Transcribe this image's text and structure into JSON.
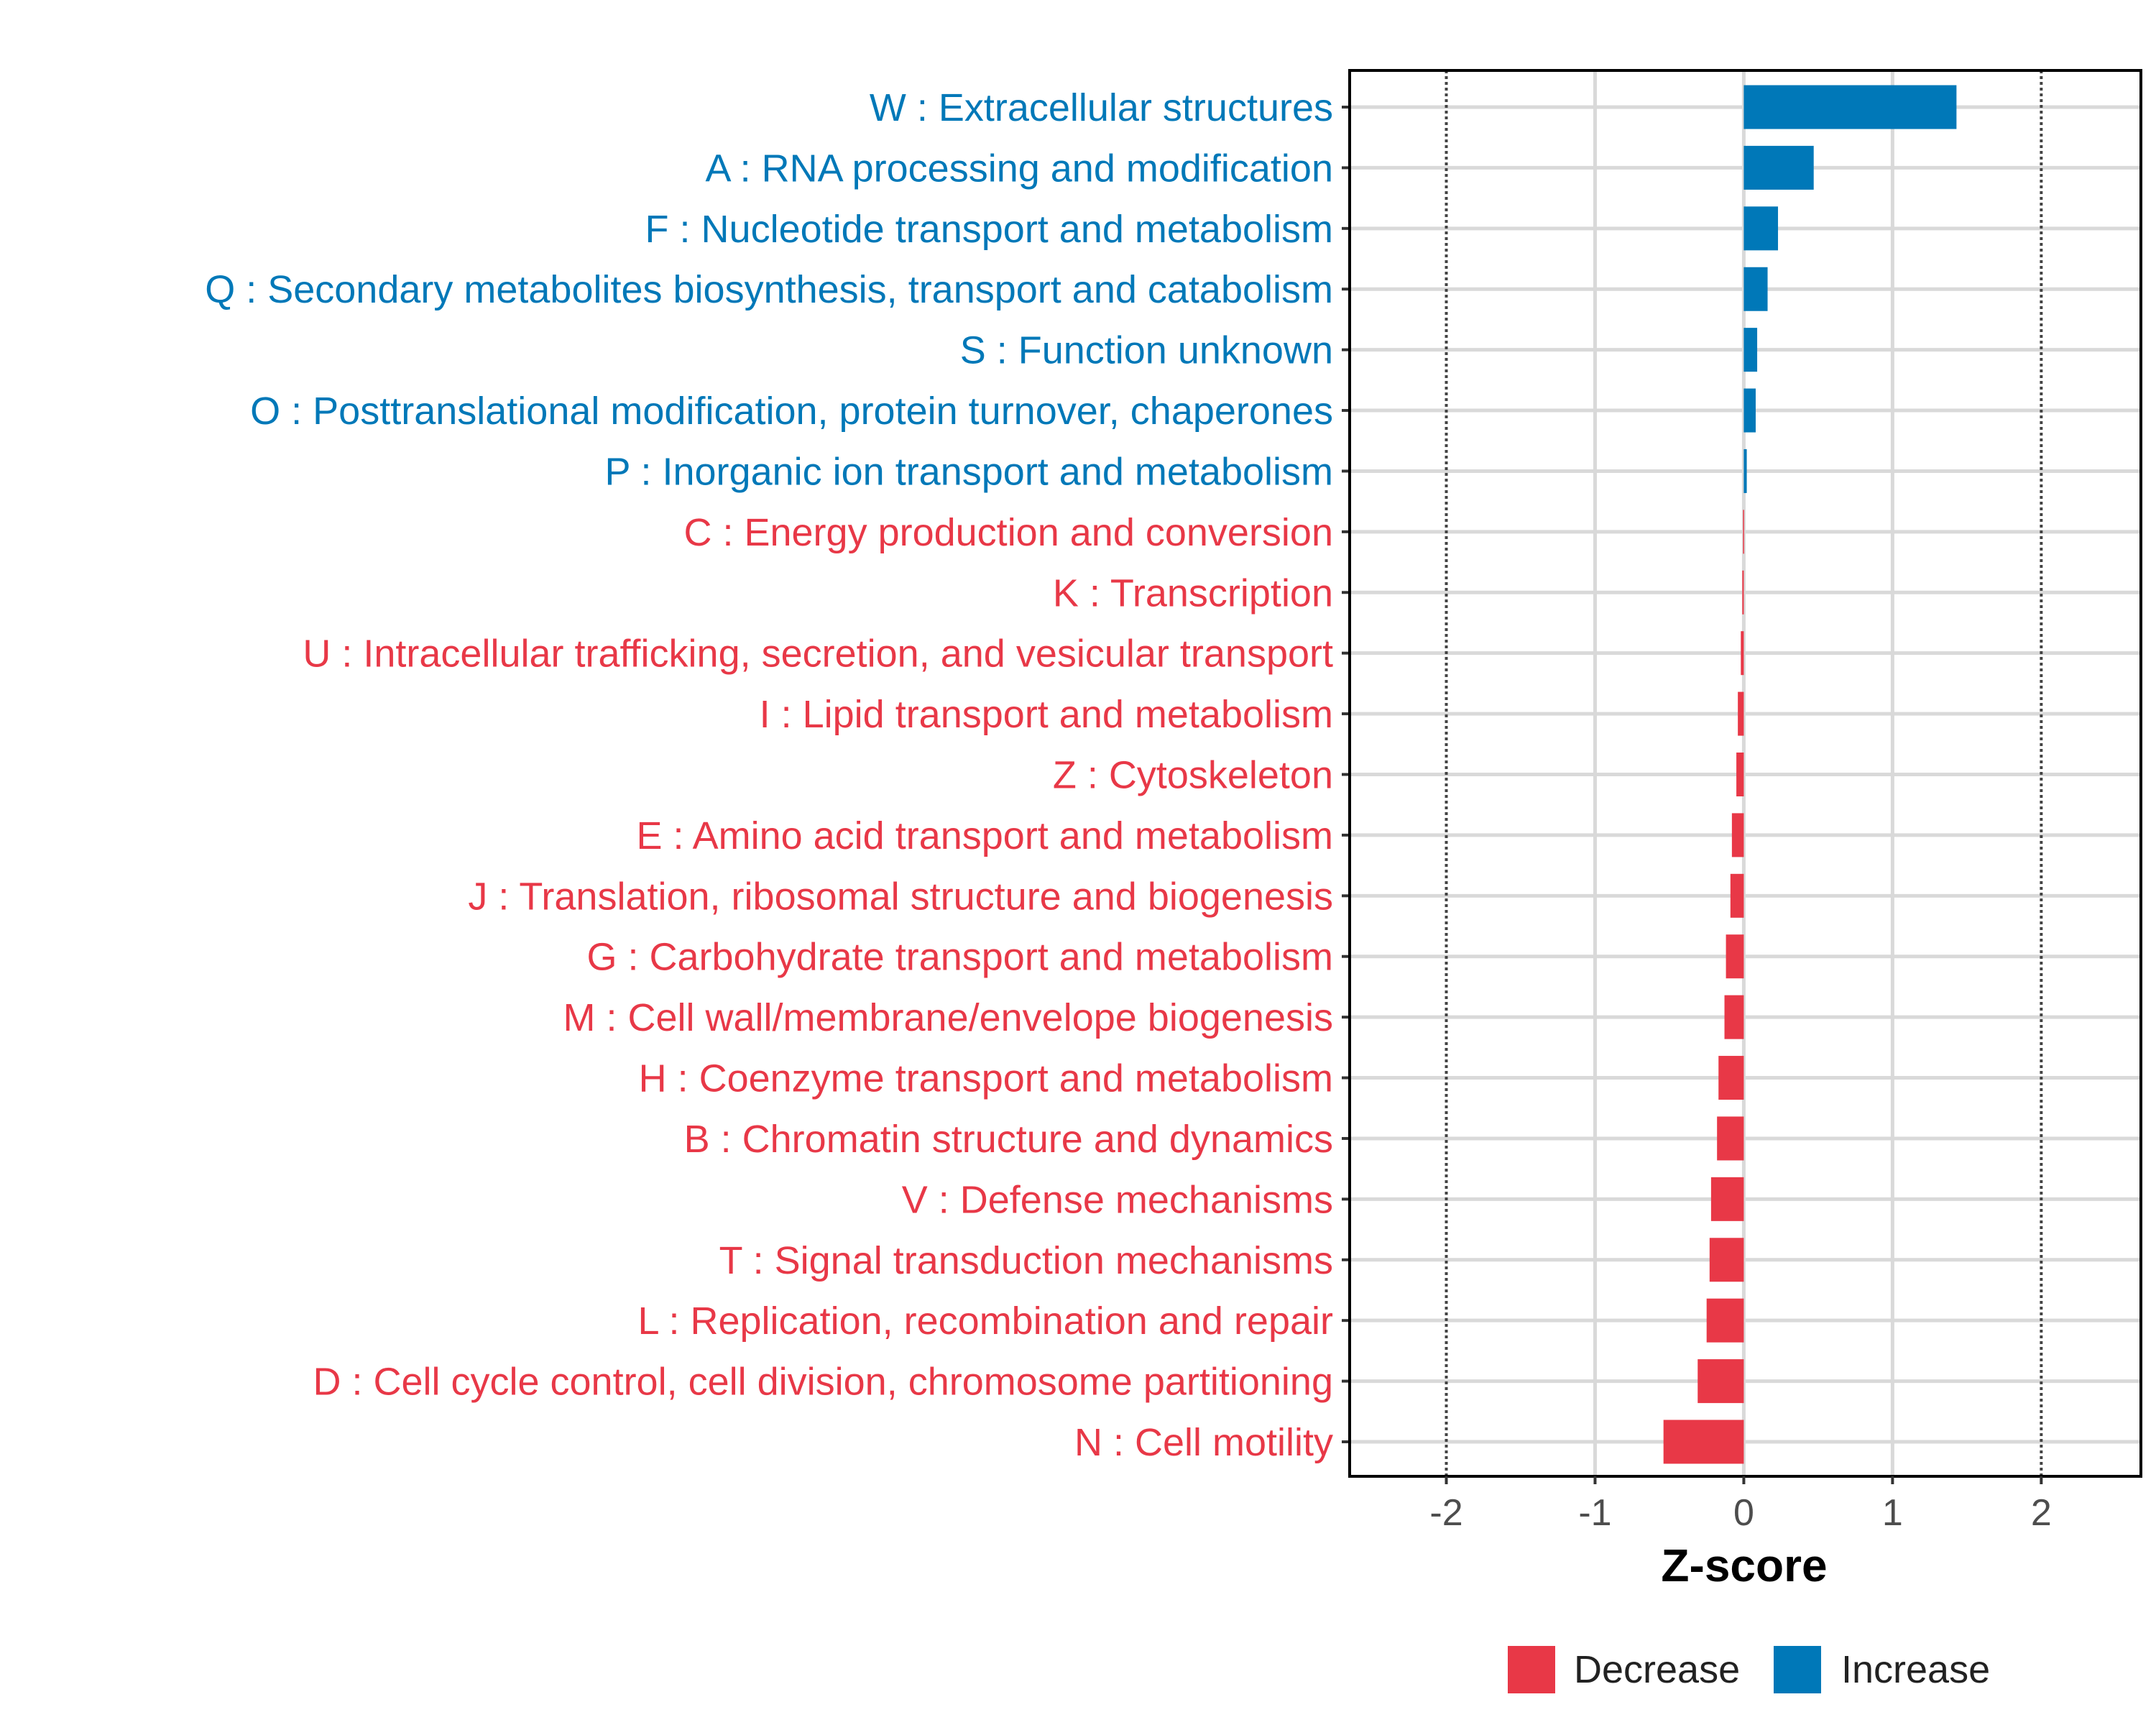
{
  "chart_data": {
    "type": "bar",
    "orientation": "horizontal",
    "title": "",
    "xlabel": "Z-score",
    "ylabel": "",
    "xlim": [
      -2.65,
      2.67
    ],
    "xticks": [
      -2,
      -1,
      0,
      1,
      2
    ],
    "xtick_labels": [
      "-2",
      "-1",
      "0",
      "1",
      "2"
    ],
    "reference_lines": [
      -2,
      2
    ],
    "grid": true,
    "categories": [
      "W : Extracellular structures",
      "A : RNA processing and modification",
      "F : Nucleotide transport and metabolism",
      "Q : Secondary metabolites biosynthesis, transport and catabolism",
      "S : Function unknown",
      "O : Posttranslational modification, protein turnover, chaperones",
      "P : Inorganic ion transport and metabolism",
      "C : Energy production and conversion",
      "K : Transcription",
      "U : Intracellular trafficking, secretion, and vesicular transport",
      "I : Lipid transport and metabolism",
      "Z : Cytoskeleton",
      "E : Amino acid transport and metabolism",
      "J : Translation, ribosomal structure and biogenesis",
      "G : Carbohydrate transport and metabolism",
      "M : Cell wall/membrane/envelope biogenesis",
      "H : Coenzyme transport and metabolism",
      "B : Chromatin structure and dynamics",
      "V : Defense mechanisms",
      "T : Signal transduction mechanisms",
      "L : Replication, recombination and repair",
      "D : Cell cycle control, cell division, chromosome partitioning",
      "N : Cell motility"
    ],
    "values": [
      1.43,
      0.47,
      0.23,
      0.16,
      0.09,
      0.08,
      0.02,
      -0.005,
      -0.01,
      -0.02,
      -0.04,
      -0.05,
      -0.08,
      -0.09,
      -0.12,
      -0.13,
      -0.17,
      -0.18,
      -0.22,
      -0.23,
      -0.25,
      -0.31,
      -0.54
    ],
    "legend": {
      "placement": "bottom",
      "entries": [
        {
          "label": "Decrease",
          "color": "#E83847"
        },
        {
          "label": "Increase",
          "color": "#0078B8"
        }
      ]
    },
    "colors": {
      "increase": "#0078B8",
      "decrease": "#E83847",
      "grid": "#D9D9D9",
      "axis_text": "#4D4D4D"
    }
  }
}
